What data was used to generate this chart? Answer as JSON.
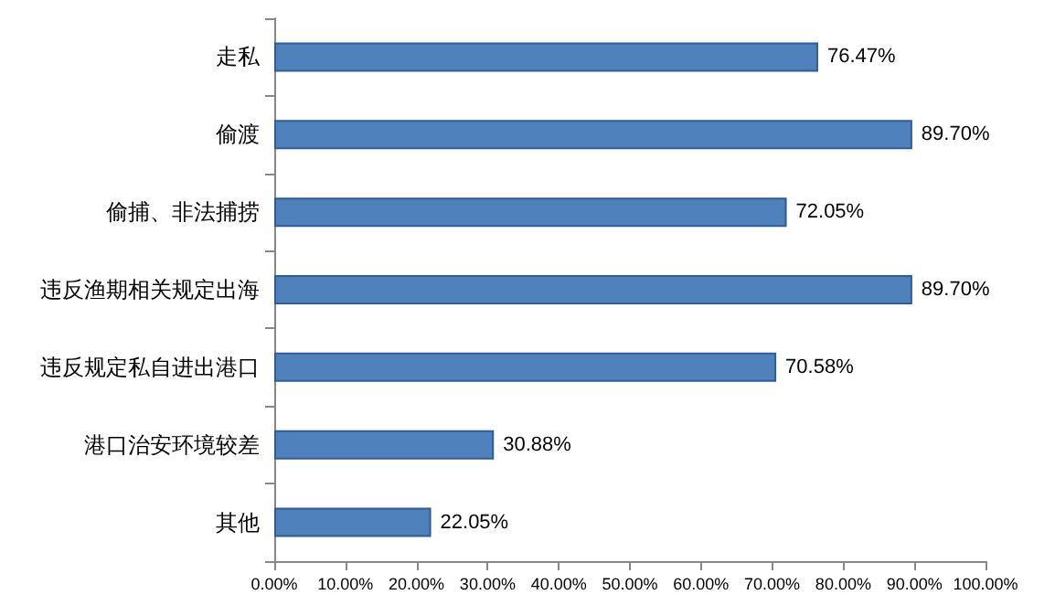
{
  "chart_data": {
    "type": "bar",
    "orientation": "horizontal",
    "categories": [
      "走私",
      "偷渡",
      "偷捕、非法捕捞",
      "违反渔期相关规定出海",
      "违反规定私自进出港口",
      "港口治安环境较差",
      "其他"
    ],
    "values": [
      76.47,
      89.7,
      72.05,
      89.7,
      70.58,
      30.88,
      22.05
    ],
    "value_labels": [
      "76.47%",
      "89.70%",
      "72.05%",
      "89.70%",
      "70.58%",
      "30.88%",
      "22.05%"
    ],
    "color": "#4f81bd",
    "xlim": [
      0,
      100
    ],
    "xticks": [
      {
        "value": 0,
        "label": "0.00%"
      },
      {
        "value": 10,
        "label": "10.00%"
      },
      {
        "value": 20,
        "label": "20.00%"
      },
      {
        "value": 30,
        "label": "30.00%"
      },
      {
        "value": 40,
        "label": "40.00%"
      },
      {
        "value": 50,
        "label": "50.00%"
      },
      {
        "value": 60,
        "label": "60.00%"
      },
      {
        "value": 70,
        "label": "70.00%"
      },
      {
        "value": 80,
        "label": "80.00%"
      },
      {
        "value": 90,
        "label": "90.00%"
      },
      {
        "value": 100,
        "label": "100.00%"
      }
    ],
    "grid": false
  }
}
